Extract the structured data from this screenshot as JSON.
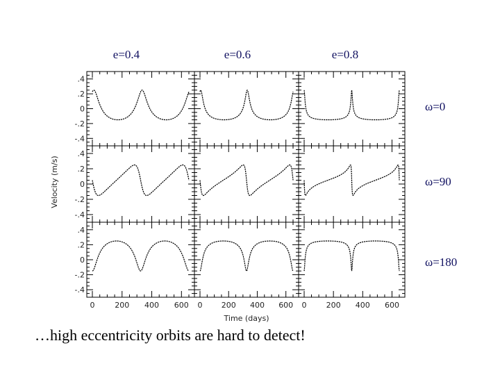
{
  "caption": "…high eccentricity orbits are hard to detect!",
  "chart_data": {
    "type": "line",
    "grid": "3x3 small multiples",
    "column_titles": [
      "e=0.4",
      "e=0.6",
      "e=0.8"
    ],
    "row_labels": [
      "ω=0",
      "ω=90",
      "ω=180"
    ],
    "xlabel": "Time (days)",
    "ylabel": "Velocity (m/s)",
    "xlim": [
      0,
      650
    ],
    "ylim": [
      -0.5,
      0.5
    ],
    "x_ticks": [
      0,
      200,
      400,
      600
    ],
    "x_tick_labels": [
      "0",
      "200",
      "400",
      "600"
    ],
    "y_ticks": [
      0.4,
      0.2,
      0,
      -0.2,
      -0.4
    ],
    "y_tick_labels": [
      ".4",
      ".2",
      "0",
      "-.2",
      "-.4"
    ],
    "period_days": 325,
    "panels": [
      {
        "row": 0,
        "col": 0,
        "e": 0.4,
        "omega": 0,
        "peaks_days": [
          10,
          285,
          610
        ]
      },
      {
        "row": 0,
        "col": 1,
        "e": 0.6,
        "omega": 0,
        "peaks_days": [
          5,
          290,
          615
        ]
      },
      {
        "row": 0,
        "col": 2,
        "e": 0.8,
        "omega": 0,
        "peaks_days": [
          0,
          290,
          615
        ]
      },
      {
        "row": 1,
        "col": 0,
        "e": 0.4,
        "omega": 90,
        "peaks_days": [
          0,
          290,
          615
        ]
      },
      {
        "row": 1,
        "col": 1,
        "e": 0.6,
        "omega": 90,
        "peaks_days": [
          0,
          290,
          615
        ]
      },
      {
        "row": 1,
        "col": 2,
        "e": 0.8,
        "omega": 90,
        "peaks_days": [
          0,
          290,
          615
        ]
      },
      {
        "row": 2,
        "col": 0,
        "e": 0.4,
        "omega": 180,
        "peaks_days": [
          0,
          290,
          615
        ]
      },
      {
        "row": 2,
        "col": 1,
        "e": 0.6,
        "omega": 180,
        "peaks_days": [
          0,
          290,
          615
        ]
      },
      {
        "row": 2,
        "col": 2,
        "e": 0.8,
        "omega": 180,
        "peaks_days": [
          0,
          290,
          615
        ]
      }
    ]
  }
}
